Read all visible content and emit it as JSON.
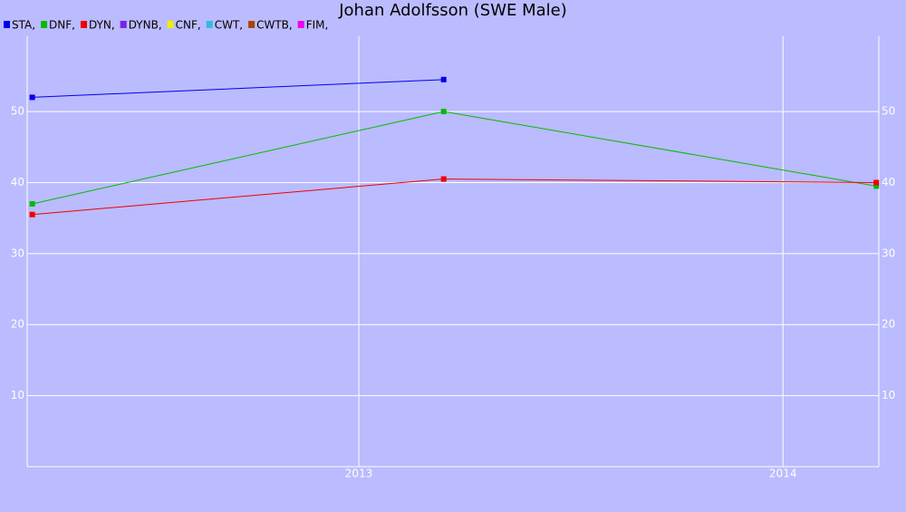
{
  "chart_data": {
    "type": "line",
    "title": "Johan Adolfsson (SWE Male)",
    "x": [
      2012.23,
      2013.2,
      2014.22
    ],
    "series": [
      {
        "name": "STA,",
        "color": "#0000ee",
        "values": [
          52,
          54.5,
          null
        ]
      },
      {
        "name": "DNF,",
        "color": "#00bb00",
        "values": [
          37,
          50,
          39.5
        ]
      },
      {
        "name": "DYN,",
        "color": "#ee0000",
        "values": [
          35.5,
          40.5,
          40
        ]
      },
      {
        "name": "DYNB,",
        "color": "#7722ee",
        "values": [
          null,
          null,
          null
        ]
      },
      {
        "name": "CNF,",
        "color": "#eeee00",
        "values": [
          null,
          null,
          null
        ]
      },
      {
        "name": "CWT,",
        "color": "#33bbdd",
        "values": [
          null,
          null,
          null
        ]
      },
      {
        "name": "CWTB,",
        "color": "#aa4400",
        "values": [
          null,
          null,
          null
        ]
      },
      {
        "name": "FIM,",
        "color": "#ee00ee",
        "values": [
          null,
          null,
          null
        ]
      }
    ],
    "xlim": [
      2012.218,
      2014.226
    ],
    "xticks": [
      2013,
      2014
    ],
    "ylim": [
      0,
      60.6
    ],
    "yticks": [
      10,
      20,
      30,
      40,
      50
    ],
    "grid": true
  }
}
